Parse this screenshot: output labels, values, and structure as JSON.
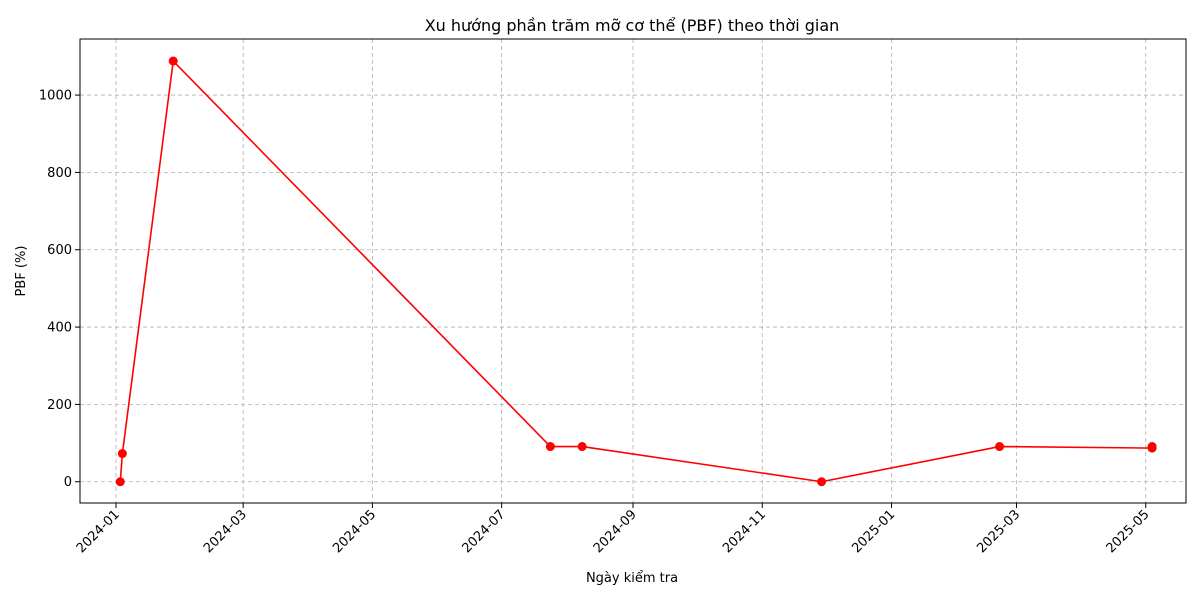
{
  "chart_data": {
    "type": "line",
    "title": "Xu hướng phần trăm mỡ cơ thể (PBF) theo thời gian",
    "xlabel": "Ngày kiểm tra",
    "ylabel": "PBF (%)",
    "x_tick_labels": [
      "2024-01",
      "2024-03",
      "2024-05",
      "2024-07",
      "2024-09",
      "2024-11",
      "2025-01",
      "2025-03",
      "2025-05"
    ],
    "x_ticks": [
      "2024-01-01",
      "2024-03-01",
      "2024-05-01",
      "2024-07-01",
      "2024-09-01",
      "2024-11-01",
      "2025-01-01",
      "2025-03-01",
      "2025-05-01"
    ],
    "y_ticks": [
      0,
      200,
      400,
      600,
      800,
      1000
    ],
    "xlim": [
      "2023-12-15",
      "2025-05-20"
    ],
    "ylim": [
      -55,
      1145
    ],
    "grid": true,
    "grid_style": "dashed",
    "series": [
      {
        "color": "#ff0000",
        "marker": "circle",
        "points": [
          {
            "x": "2024-01-03",
            "y": 0
          },
          {
            "x": "2024-01-04",
            "y": 73
          },
          {
            "x": "2024-01-28",
            "y": 1088
          },
          {
            "x": "2024-07-24",
            "y": 91
          },
          {
            "x": "2024-08-08",
            "y": 91
          },
          {
            "x": "2024-11-29",
            "y": 0
          },
          {
            "x": "2025-02-21",
            "y": 91
          },
          {
            "x": "2025-05-04",
            "y": 87
          },
          {
            "x": "2025-05-04",
            "y": 91
          }
        ]
      }
    ]
  }
}
